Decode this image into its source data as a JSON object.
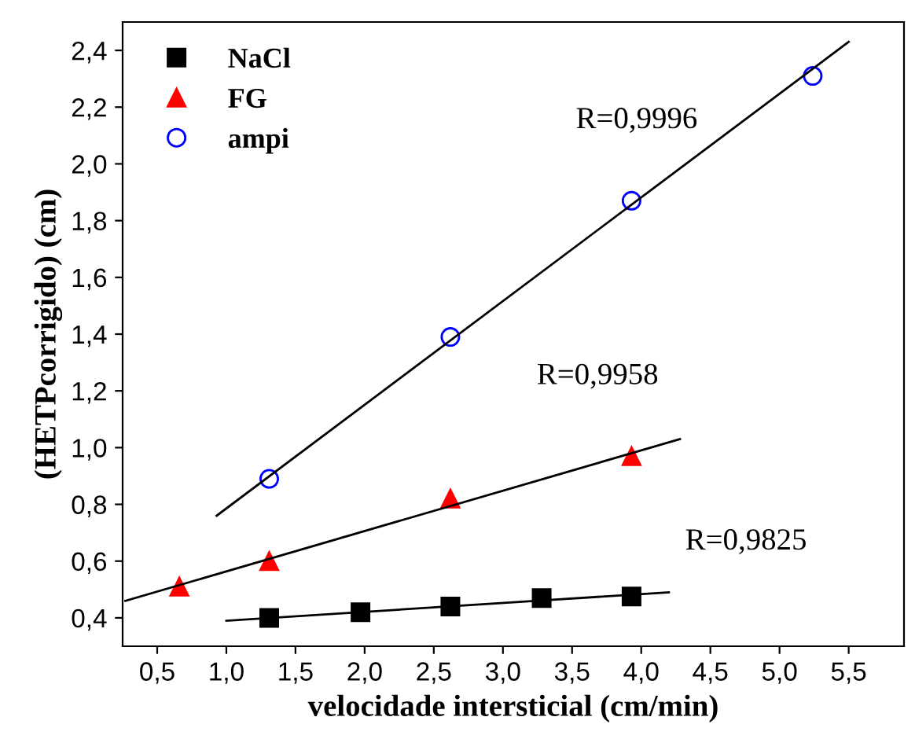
{
  "chart_data": {
    "type": "scatter",
    "xlabel": "velocidade intersticial (cm/min)",
    "ylabel": "(HETPcorrigido) (cm)",
    "xlim": [
      0.25,
      5.9
    ],
    "ylim": [
      0.3,
      2.5
    ],
    "xticks": [
      {
        "value": 0.5,
        "label": "0,5"
      },
      {
        "value": 1.0,
        "label": "1,0"
      },
      {
        "value": 1.5,
        "label": "1,5"
      },
      {
        "value": 2.0,
        "label": "2,0"
      },
      {
        "value": 2.5,
        "label": "2,5"
      },
      {
        "value": 3.0,
        "label": "3,0"
      },
      {
        "value": 3.5,
        "label": "3,5"
      },
      {
        "value": 4.0,
        "label": "4,0"
      },
      {
        "value": 4.5,
        "label": "4,5"
      },
      {
        "value": 5.0,
        "label": "5,0"
      },
      {
        "value": 5.5,
        "label": "5,5"
      }
    ],
    "yticks": [
      {
        "value": 0.4,
        "label": "0,4"
      },
      {
        "value": 0.6,
        "label": "0,6"
      },
      {
        "value": 0.8,
        "label": "0,8"
      },
      {
        "value": 1.0,
        "label": "1,0"
      },
      {
        "value": 1.2,
        "label": "1,2"
      },
      {
        "value": 1.4,
        "label": "1,4"
      },
      {
        "value": 1.6,
        "label": "1,6"
      },
      {
        "value": 1.8,
        "label": "1,8"
      },
      {
        "value": 2.0,
        "label": "2,0"
      },
      {
        "value": 2.2,
        "label": "2,2"
      },
      {
        "value": 2.4,
        "label": "2,4"
      }
    ],
    "grid": false,
    "legend": "top left",
    "series": [
      {
        "name": "NaCl",
        "marker": "square",
        "color": "#000000",
        "x": [
          1.31,
          1.97,
          2.62,
          3.28,
          3.93
        ],
        "values": [
          0.4,
          0.42,
          0.44,
          0.47,
          0.475
        ]
      },
      {
        "name": "FG",
        "marker": "triangle",
        "color": "#ff0000",
        "x": [
          0.66,
          1.31,
          2.62,
          3.93
        ],
        "values": [
          0.51,
          0.6,
          0.82,
          0.97
        ]
      },
      {
        "name": "ampi",
        "marker": "circle",
        "color": "#0000ff",
        "x": [
          1.31,
          2.62,
          3.93,
          5.24
        ],
        "values": [
          0.89,
          1.39,
          1.87,
          2.31
        ]
      },
      {
        "type": "line",
        "marker": "none",
        "color": "#000000",
        "x": [
          1.0,
          4.2
        ],
        "values": [
          0.39,
          0.49
        ]
      },
      {
        "type": "line",
        "marker": "none",
        "color": "#000000",
        "x": [
          0.27,
          4.28
        ],
        "values": [
          0.46,
          1.03
        ]
      },
      {
        "type": "line",
        "marker": "none",
        "color": "#000000",
        "x": [
          0.93,
          5.5
        ],
        "values": [
          0.76,
          2.43
        ]
      }
    ],
    "annotations": [
      "R=0,9996",
      "R=0,9958",
      "R=0,9825"
    ]
  }
}
